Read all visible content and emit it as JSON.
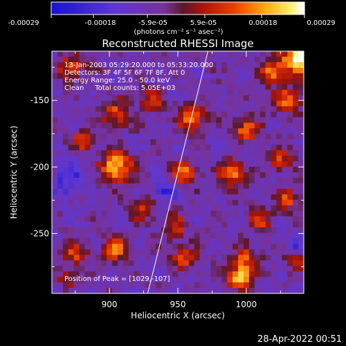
{
  "chart_data": {
    "type": "heatmap",
    "title": "Reconstructed RHESSI Image",
    "xlabel": "Heliocentric X (arcsec)",
    "ylabel": "Heliocentric Y (arcsec)",
    "xlim": [
      858,
      1042
    ],
    "ylim": [
      -295,
      -113
    ],
    "x_ticks": [
      900,
      950,
      1000
    ],
    "y_ticks": [
      -150,
      -200,
      -250
    ],
    "colorbar": {
      "ticks": [
        "-0.00029",
        "-0.00018",
        "-5.9e-05",
        "5.9e-05",
        "0.00018",
        "0.00029"
      ],
      "units": "(photons cm⁻² s⁻¹ asec⁻²)",
      "range": [
        -0.00029,
        0.00029
      ]
    },
    "info_lines": [
      "13-Jan-2003 05:29:20.000 to 05:33:20.000",
      "Detectors: 3F 4F 5F 6F 7F 8F, Att 0",
      "Energy Range: 25.0 - 50.0 keV",
      "Clean     Total counts: 5.05E+03"
    ],
    "peak_label": "Position of Peak = [1029,-107]",
    "limb_line": {
      "x": [
        928,
        972
      ],
      "y": [
        -295,
        -113
      ]
    },
    "blobs": [
      {
        "x": 1040,
        "y": -118,
        "sigma": 8,
        "amp": 1.3
      },
      {
        "x": 1020,
        "y": -128,
        "sigma": 7,
        "amp": 0.7
      },
      {
        "x": 872,
        "y": -125,
        "sigma": 7,
        "amp": 0.55
      },
      {
        "x": 905,
        "y": -160,
        "sigma": 7,
        "amp": 0.65
      },
      {
        "x": 930,
        "y": -150,
        "sigma": 6,
        "amp": 0.55
      },
      {
        "x": 960,
        "y": -163,
        "sigma": 7,
        "amp": 0.8
      },
      {
        "x": 1000,
        "y": -172,
        "sigma": 6,
        "amp": 0.7
      },
      {
        "x": 1030,
        "y": -150,
        "sigma": 7,
        "amp": 0.65
      },
      {
        "x": 880,
        "y": -180,
        "sigma": 6,
        "amp": 0.5
      },
      {
        "x": 905,
        "y": -200,
        "sigma": 8,
        "amp": 0.95
      },
      {
        "x": 955,
        "y": -205,
        "sigma": 6,
        "amp": 0.7
      },
      {
        "x": 990,
        "y": -205,
        "sigma": 7,
        "amp": 0.75
      },
      {
        "x": 1025,
        "y": -195,
        "sigma": 6,
        "amp": 0.55
      },
      {
        "x": 925,
        "y": -232,
        "sigma": 6,
        "amp": 0.45
      },
      {
        "x": 948,
        "y": -245,
        "sigma": 6,
        "amp": 0.5
      },
      {
        "x": 1010,
        "y": -240,
        "sigma": 6,
        "amp": 0.55
      },
      {
        "x": 1030,
        "y": -225,
        "sigma": 6,
        "amp": 0.55
      },
      {
        "x": 875,
        "y": -265,
        "sigma": 6,
        "amp": 0.55
      },
      {
        "x": 905,
        "y": -262,
        "sigma": 7,
        "amp": 0.65
      },
      {
        "x": 955,
        "y": -268,
        "sigma": 6,
        "amp": 0.6
      },
      {
        "x": 1000,
        "y": -270,
        "sigma": 7,
        "amp": 0.6
      },
      {
        "x": 1035,
        "y": -268,
        "sigma": 6,
        "amp": 0.5
      },
      {
        "x": 995,
        "y": -283,
        "sigma": 6,
        "amp": 0.9
      },
      {
        "x": 870,
        "y": -285,
        "sigma": 5,
        "amp": 0.45
      },
      {
        "x": 940,
        "y": -218,
        "sigma": 5,
        "amp": -0.6
      },
      {
        "x": 870,
        "y": -210,
        "sigma": 9,
        "amp": -0.4
      },
      {
        "x": 1035,
        "y": -260,
        "sigma": 5,
        "amp": -0.55
      }
    ]
  },
  "footer": {
    "timestamp": "28-Apr-2022 00:51"
  }
}
